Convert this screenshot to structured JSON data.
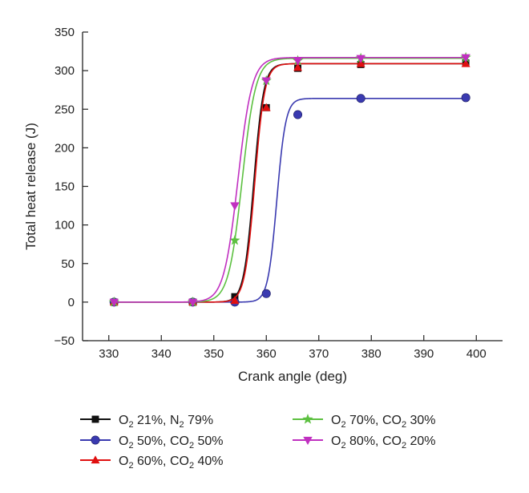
{
  "chart_data": {
    "type": "line",
    "xlabel": "Crank angle (deg)",
    "ylabel": "Total heat release (J)",
    "xlim": [
      325,
      405
    ],
    "ylim": [
      -50,
      350
    ],
    "xticks": [
      330,
      340,
      350,
      360,
      370,
      380,
      390,
      400
    ],
    "yticks": [
      -50,
      0,
      50,
      100,
      150,
      200,
      250,
      300,
      350
    ],
    "grid": false,
    "legend_position": "bottom",
    "series": [
      {
        "name_parts": [
          "O",
          "2",
          " 21%, N",
          "2",
          " 79%"
        ],
        "color": "#111111",
        "marker": "square",
        "x": [
          331,
          346,
          354,
          360,
          366,
          378,
          398
        ],
        "y": [
          0,
          0,
          7,
          252,
          303,
          308,
          310
        ],
        "curve": {
          "lo": 0,
          "hi": 309,
          "center": 357.6,
          "width": 0.95
        }
      },
      {
        "name_parts": [
          "O",
          "2",
          " 50%, CO",
          "2",
          " 50%"
        ],
        "color": "#3a3ab0",
        "marker": "circle",
        "x": [
          331,
          346,
          354,
          360,
          366,
          378,
          398
        ],
        "y": [
          0,
          0,
          0,
          11,
          243,
          264,
          265
        ],
        "curve": {
          "lo": 0,
          "hi": 264,
          "center": 362.0,
          "width": 0.85
        }
      },
      {
        "name_parts": [
          "O",
          "2",
          " 60%, CO",
          "2",
          " 40%"
        ],
        "color": "#e01010",
        "marker": "triangle-up",
        "x": [
          331,
          346,
          354,
          360,
          366,
          378,
          398
        ],
        "y": [
          0,
          0,
          2,
          252,
          304,
          309,
          309
        ],
        "curve": {
          "lo": 0,
          "hi": 309,
          "center": 357.8,
          "width": 0.95
        }
      },
      {
        "name_parts": [
          "O",
          "2",
          " 70%, CO",
          "2",
          " 30%"
        ],
        "color": "#5cc040",
        "marker": "star",
        "x": [
          331,
          346,
          354,
          360,
          366,
          378,
          398
        ],
        "y": [
          0,
          0,
          80,
          287,
          313,
          316,
          317
        ],
        "curve": {
          "lo": 0,
          "hi": 316,
          "center": 355.4,
          "width": 1.3
        }
      },
      {
        "name_parts": [
          "O",
          "2",
          " 80%, CO",
          "2",
          " 20%"
        ],
        "color": "#c030c0",
        "marker": "triangle-down",
        "x": [
          331,
          346,
          354,
          360,
          366,
          378,
          398
        ],
        "y": [
          0,
          0,
          125,
          287,
          313,
          316,
          317
        ],
        "curve": {
          "lo": 0,
          "hi": 317,
          "center": 354.6,
          "width": 1.35
        }
      }
    ]
  }
}
